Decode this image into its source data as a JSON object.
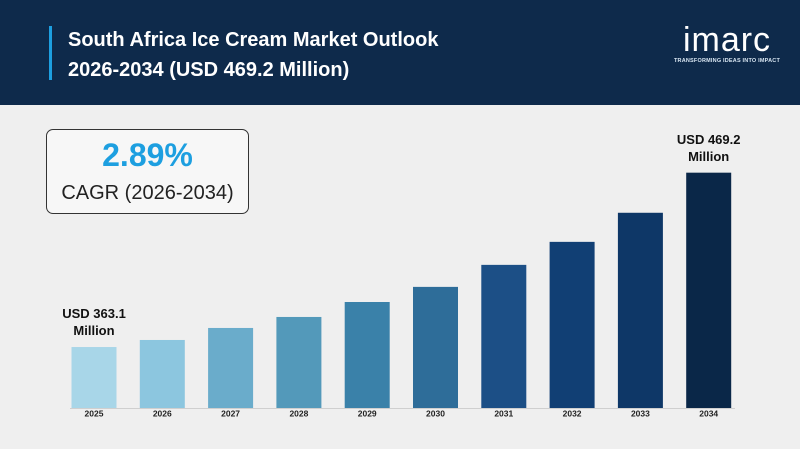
{
  "chart_data": {
    "type": "bar",
    "title": "South Africa Ice Cream Market Outlook 2026-2034 (USD 469.2 Million)",
    "cagr_value": "2.89%",
    "cagr_label": "CAGR (2026-2034)",
    "categories": [
      "2025",
      "2026",
      "2027",
      "2028",
      "2029",
      "2030",
      "2031",
      "2032",
      "2033",
      "2034"
    ],
    "values": [
      363.1,
      367.4,
      374.7,
      381.4,
      390.5,
      399.7,
      413.1,
      427.1,
      444.8,
      469.2
    ],
    "value_labels": [
      "USD 363.1 Million",
      null,
      null,
      null,
      null,
      null,
      null,
      null,
      null,
      "USD 469.2 Million"
    ],
    "colors": [
      "#a8d6e8",
      "#8cc6df",
      "#6aaccb",
      "#5399ba",
      "#3a81a9",
      "#2e6d99",
      "#1c4f86",
      "#113f74",
      "#0e3767",
      "#0a2748"
    ],
    "ylim": [
      326,
      483
    ]
  },
  "logo": {
    "name": "imarc",
    "tagline": "TRANSFORMING IDEAS INTO IMPACT"
  }
}
